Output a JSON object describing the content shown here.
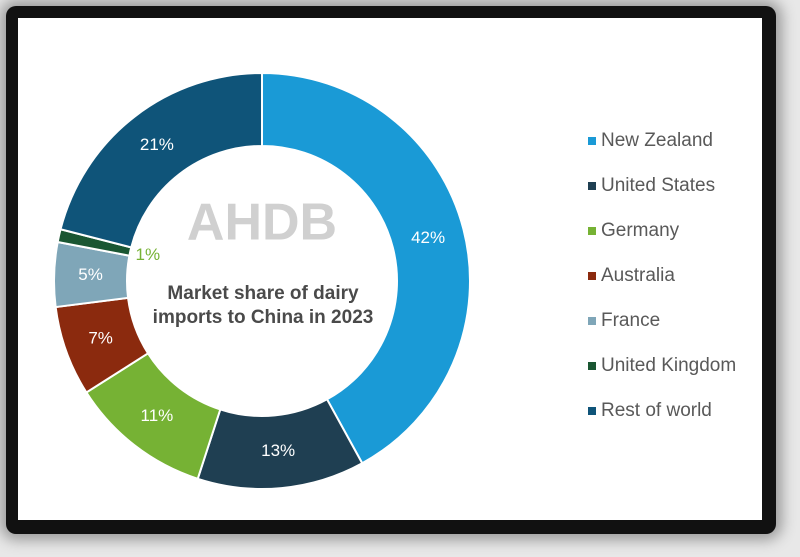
{
  "chart_data": {
    "type": "donut",
    "title": "Market share of dairy imports to China in 2023",
    "logo": "AHDB",
    "categories": [
      "New Zealand",
      "United States",
      "Germany",
      "Australia",
      "France",
      "United Kingdom",
      "Rest of world"
    ],
    "values": [
      42,
      13,
      11,
      7,
      5,
      1,
      21
    ],
    "value_labels": [
      "42%",
      "13%",
      "11%",
      "7%",
      "5%",
      "1%",
      "21%"
    ],
    "colors": [
      "#1a9ad6",
      "#1f3f52",
      "#76b234",
      "#8b2a0e",
      "#7fa6b8",
      "#1a5632",
      "#0f5479"
    ],
    "legend": "right"
  }
}
